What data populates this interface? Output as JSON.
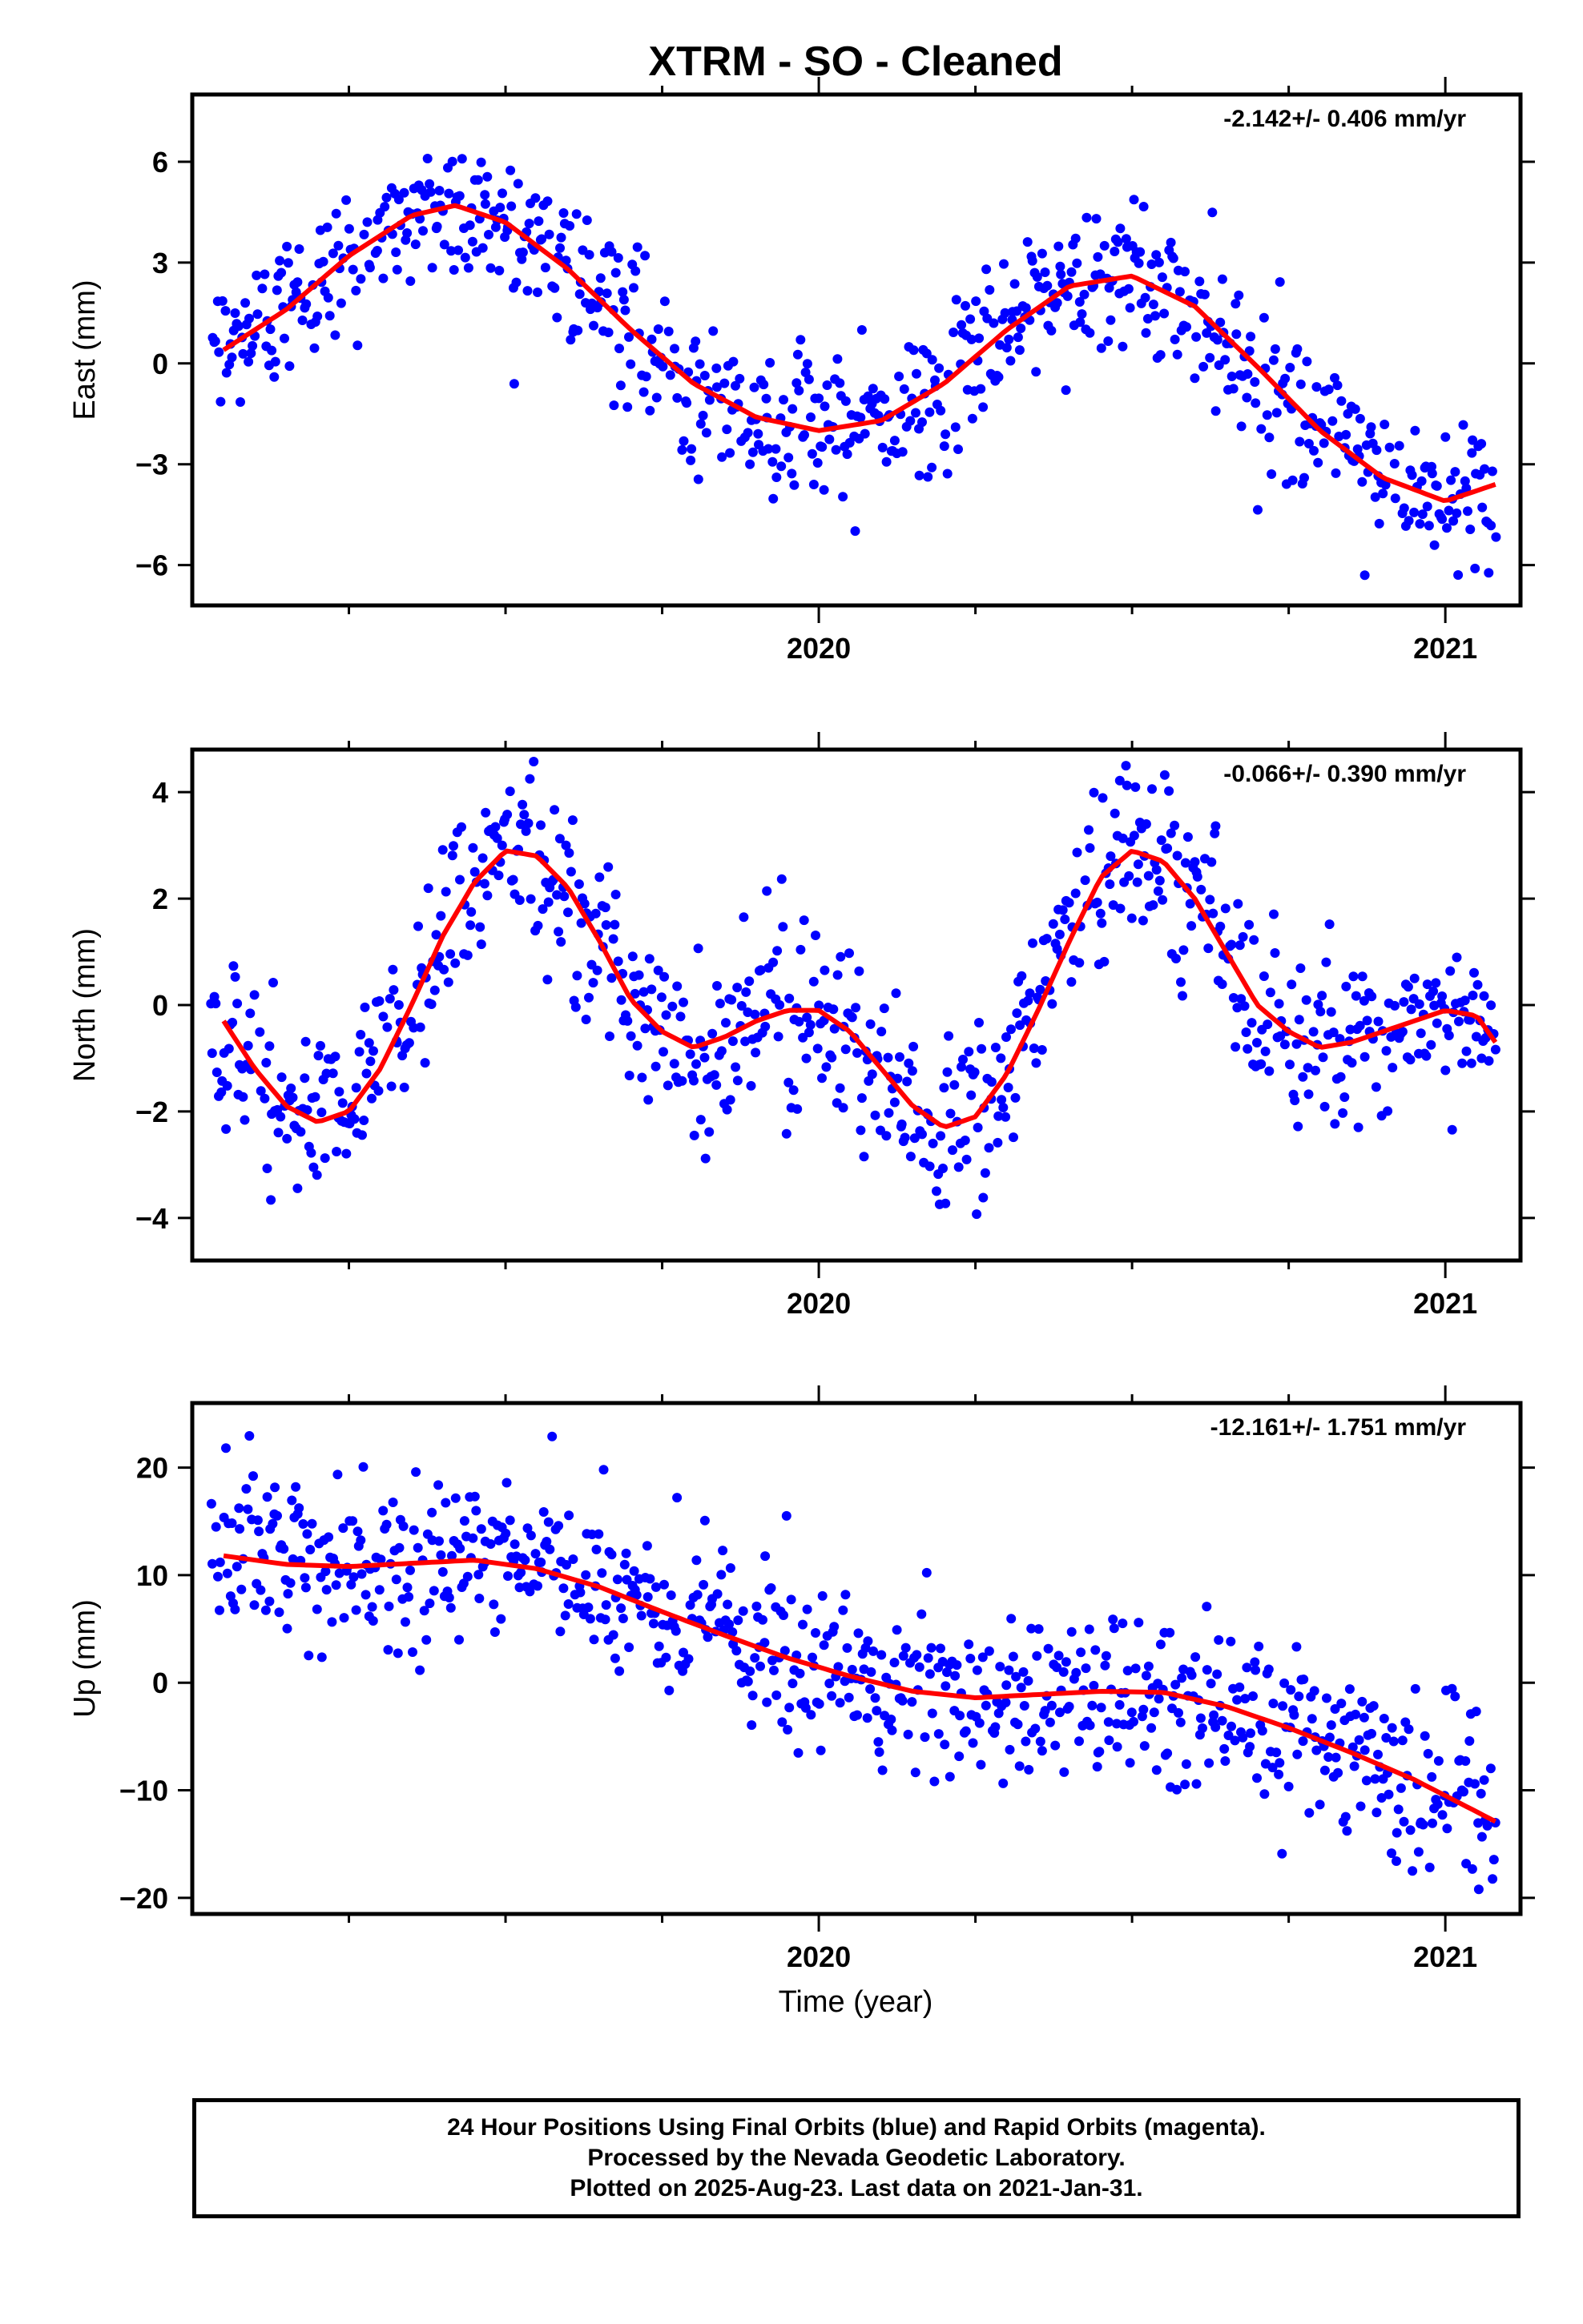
{
  "title": "XTRM  - SO - Cleaned",
  "xlabel": "Time (year)",
  "footer": {
    "line1": "24 Hour Positions Using Final Orbits (blue) and Rapid Orbits (magenta).",
    "line2": "Processed by the Nevada Geodetic Laboratory.",
    "line3": "Plotted on 2025-Aug-23. Last data on 2021-Jan-31."
  },
  "colors": {
    "points": "#0000ff",
    "fit": "#ff0000",
    "frame": "#000000"
  },
  "chart_data": [
    {
      "type": "scatter",
      "component": "east",
      "ylabel": "East (mm)",
      "rate_label": "-2.142+/- 0.406 mm/yr",
      "xlim": [
        2019.0,
        2021.12
      ],
      "ylim": [
        -7.2,
        8.0
      ],
      "yticks": [
        6,
        3,
        0,
        -3,
        -6
      ],
      "ytick_labels": [
        "6",
        "3",
        "0",
        "−3",
        "−6"
      ],
      "xticks_labeled": [
        2020,
        2021
      ],
      "xtick_labels": [
        "2020",
        "2021"
      ],
      "xticks_minor": [
        2019.25,
        2019.5,
        2019.75,
        2020.25,
        2020.5,
        2020.75
      ],
      "grid": false,
      "fit_curve": {
        "x": [
          2019.05,
          2019.15,
          2019.25,
          2019.35,
          2019.42,
          2019.5,
          2019.6,
          2019.7,
          2019.8,
          2019.9,
          2020.0,
          2020.1,
          2020.2,
          2020.3,
          2020.4,
          2020.5,
          2020.6,
          2020.7,
          2020.8,
          2020.9,
          2021.0,
          2021.08
        ],
        "y": [
          0.4,
          1.6,
          3.2,
          4.4,
          4.7,
          4.2,
          2.8,
          1.0,
          -0.6,
          -1.6,
          -2.0,
          -1.7,
          -0.6,
          1.0,
          2.3,
          2.6,
          1.7,
          -0.1,
          -2.0,
          -3.4,
          -4.1,
          -3.6
        ]
      },
      "points": {
        "count": 800,
        "noise_sd": 1.1,
        "x_start": 2019.03,
        "x_end": 2021.08
      }
    },
    {
      "type": "scatter",
      "component": "north",
      "ylabel": "North (mm)",
      "rate_label": "-0.066+/- 0.390 mm/yr",
      "xlim": [
        2019.0,
        2021.12
      ],
      "ylim": [
        -4.8,
        4.8
      ],
      "yticks": [
        4,
        2,
        0,
        -2,
        -4
      ],
      "ytick_labels": [
        "4",
        "2",
        "0",
        "−2",
        "−4"
      ],
      "xticks_labeled": [
        2020,
        2021
      ],
      "xtick_labels": [
        "2020",
        "2021"
      ],
      "xticks_minor": [
        2019.25,
        2019.5,
        2019.75,
        2020.25,
        2020.5,
        2020.75
      ],
      "grid": false,
      "fit_curve": {
        "x": [
          2019.05,
          2019.1,
          2019.15,
          2019.2,
          2019.25,
          2019.3,
          2019.35,
          2019.4,
          2019.45,
          2019.5,
          2019.55,
          2019.6,
          2019.65,
          2019.7,
          2019.75,
          2019.8,
          2019.85,
          2019.9,
          2019.95,
          2020.0,
          2020.05,
          2020.1,
          2020.15,
          2020.2,
          2020.25,
          2020.3,
          2020.35,
          2020.4,
          2020.45,
          2020.5,
          2020.55,
          2020.6,
          2020.65,
          2020.7,
          2020.75,
          2020.8,
          2020.85,
          2020.9,
          2020.95,
          2021.0,
          2021.05,
          2021.08
        ],
        "y": [
          -0.3,
          -1.2,
          -1.9,
          -2.2,
          -2.0,
          -1.2,
          0.0,
          1.3,
          2.3,
          2.9,
          2.8,
          2.2,
          1.2,
          0.1,
          -0.5,
          -0.8,
          -0.6,
          -0.3,
          -0.1,
          -0.1,
          -0.5,
          -1.2,
          -1.9,
          -2.3,
          -2.1,
          -1.3,
          -0.1,
          1.2,
          2.4,
          2.9,
          2.7,
          2.0,
          1.0,
          0.0,
          -0.5,
          -0.8,
          -0.7,
          -0.5,
          -0.3,
          -0.1,
          -0.2,
          -0.7
        ]
      },
      "points": {
        "count": 800,
        "noise_sd": 0.9,
        "x_start": 2019.03,
        "x_end": 2021.08
      }
    },
    {
      "type": "scatter",
      "component": "up",
      "ylabel": "Up (mm)",
      "rate_label": "-12.161+/- 1.751 mm/yr",
      "xlim": [
        2019.0,
        2021.12
      ],
      "ylim": [
        -21.5,
        26.0
      ],
      "yticks": [
        20,
        10,
        0,
        -10,
        -20
      ],
      "ytick_labels": [
        "20",
        "10",
        "0",
        "−10",
        "−20"
      ],
      "xticks_labeled": [
        2020,
        2021
      ],
      "xtick_labels": [
        "2020",
        "2021"
      ],
      "xticks_minor": [
        2019.25,
        2019.5,
        2019.75,
        2020.25,
        2020.5,
        2020.75
      ],
      "grid": false,
      "fit_curve": {
        "x": [
          2019.05,
          2019.15,
          2019.25,
          2019.35,
          2019.45,
          2019.55,
          2019.65,
          2019.75,
          2019.85,
          2019.95,
          2020.05,
          2020.15,
          2020.25,
          2020.35,
          2020.45,
          2020.55,
          2020.65,
          2020.75,
          2020.85,
          2020.95,
          2021.08
        ],
        "y": [
          11.8,
          11.0,
          10.8,
          11.1,
          11.4,
          10.6,
          8.9,
          6.6,
          4.4,
          2.3,
          0.6,
          -0.8,
          -1.4,
          -1.1,
          -0.8,
          -0.9,
          -2.2,
          -4.2,
          -6.5,
          -9.0,
          -12.9
        ]
      },
      "points": {
        "count": 800,
        "noise_sd": 4.0,
        "x_start": 2019.03,
        "x_end": 2021.08
      }
    }
  ]
}
